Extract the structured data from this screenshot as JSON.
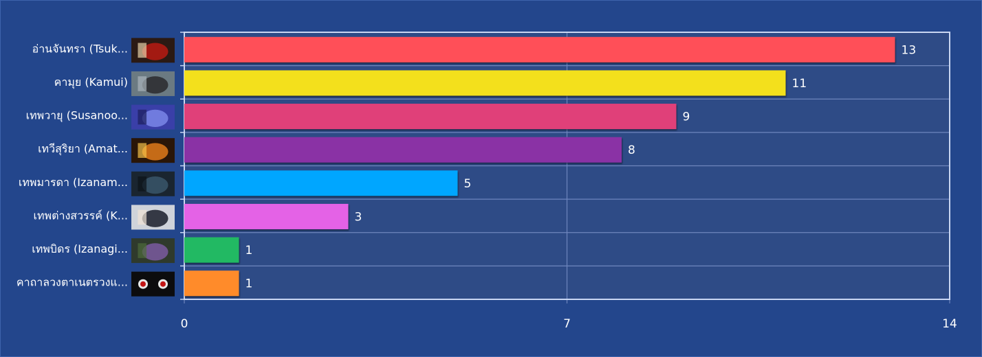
{
  "chart_data": {
    "type": "bar",
    "orientation": "horizontal",
    "categories": [
      "อ่านจันทรา (Tsuk...",
      "คามุย (Kamui)",
      "เทพวายุ (Susanoo...",
      "เทวีสุริยา (Amat...",
      "เทพมารดา (Izanam...",
      "เทพต่างสวรรค์ (K...",
      "เทพบิดร (Izanagi...",
      "คาถาลวงตาเนตรวงแ..."
    ],
    "values": [
      13,
      11,
      9,
      8,
      5,
      3,
      1,
      1
    ],
    "bar_colors": [
      "#ff5058",
      "#f3e01f",
      "#e03f79",
      "#8a30a5",
      "#00a6ff",
      "#e462e6",
      "#23b964",
      "#ff8b2a"
    ],
    "thumbnail_icons": [
      "tsukuyomi-thumbnail-icon",
      "kamui-thumbnail-icon",
      "susanoo-thumbnail-icon",
      "amaterasu-thumbnail-icon",
      "izanami-thumbnail-icon",
      "kotoamatsukami-thumbnail-icon",
      "izanagi-thumbnail-icon",
      "sharingan-genjutsu-thumbnail-icon"
    ],
    "xlim": [
      0,
      14
    ],
    "xticks": [
      "0",
      "7",
      "14"
    ],
    "grid": true,
    "colors": {
      "background": "#23468c",
      "plot_area": "#2e4b86",
      "grid": "#6f86bd",
      "axis": "#c9d6f2",
      "text": "#ffffff"
    }
  }
}
